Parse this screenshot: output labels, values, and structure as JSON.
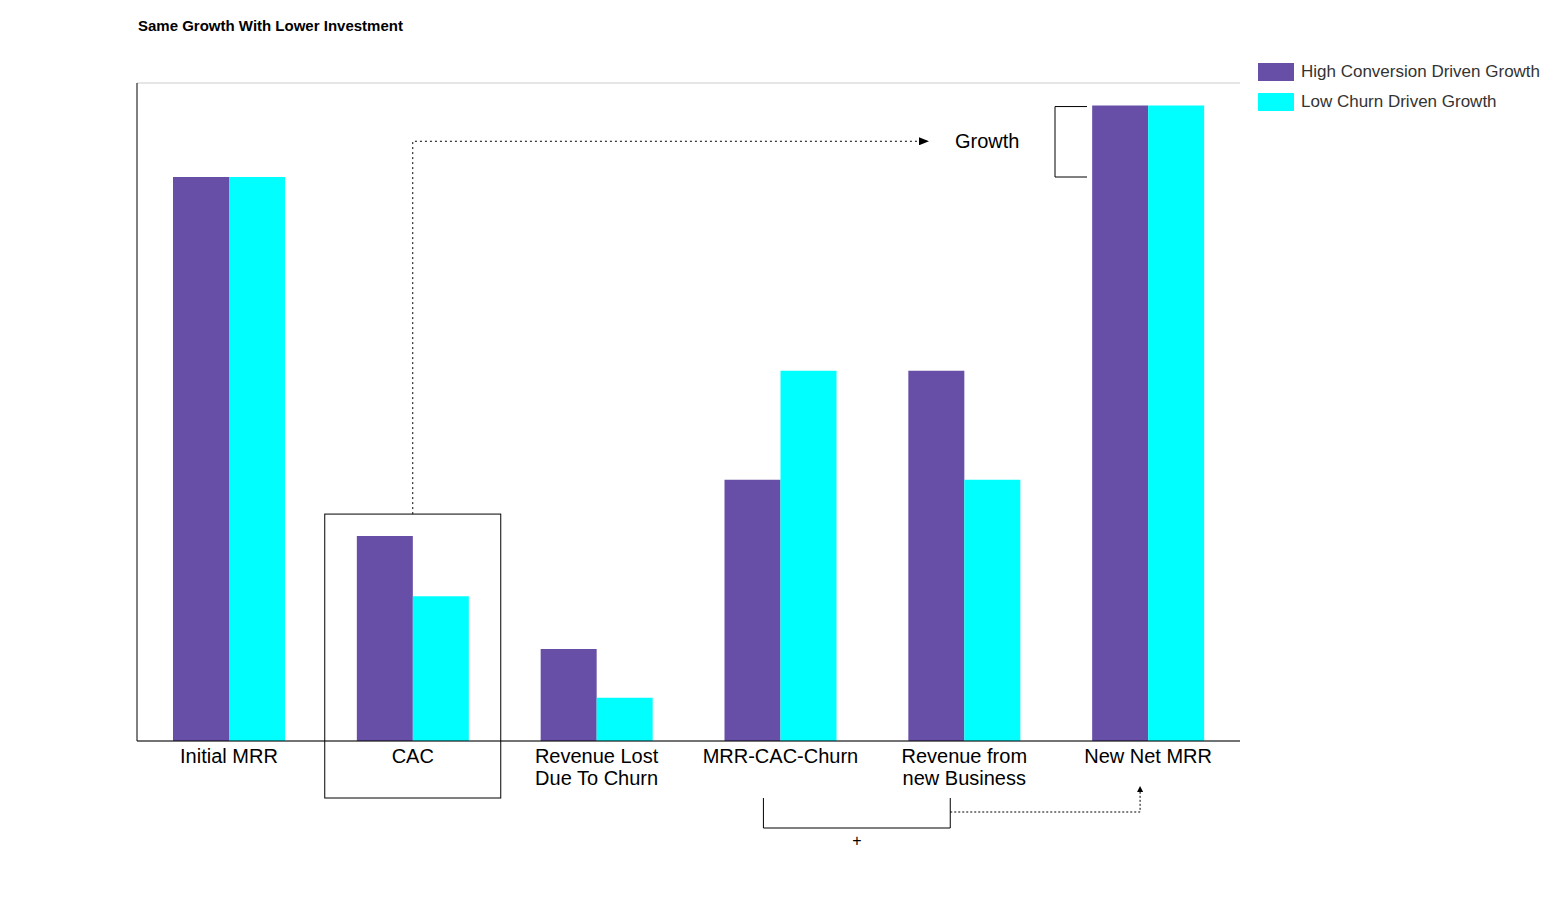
{
  "chart_data": {
    "type": "bar",
    "title": "Same Growth With Lower Investment",
    "categories": [
      "Initial MRR",
      "CAC",
      "Revenue Lost Due To Churn",
      "MRR-CAC-Churn",
      "Revenue from new Business",
      "New Net MRR"
    ],
    "series": [
      {
        "name": "High Conversion Driven Growth",
        "color": "#674ea7",
        "values": [
          3,
          1.09,
          0.49,
          1.39,
          1.97,
          3.38
        ]
      },
      {
        "name": "Low Churn Driven Growth",
        "color": "#00ffff",
        "values": [
          3,
          0.77,
          0.23,
          1.97,
          1.39,
          3.38
        ]
      }
    ],
    "ylim": [
      0,
      3.5
    ],
    "yticks": [
      0,
      1,
      2,
      3
    ],
    "grid": true,
    "legend": "upper right",
    "tick_labels": "x",
    "annotations": [
      "Growth",
      "+"
    ]
  }
}
